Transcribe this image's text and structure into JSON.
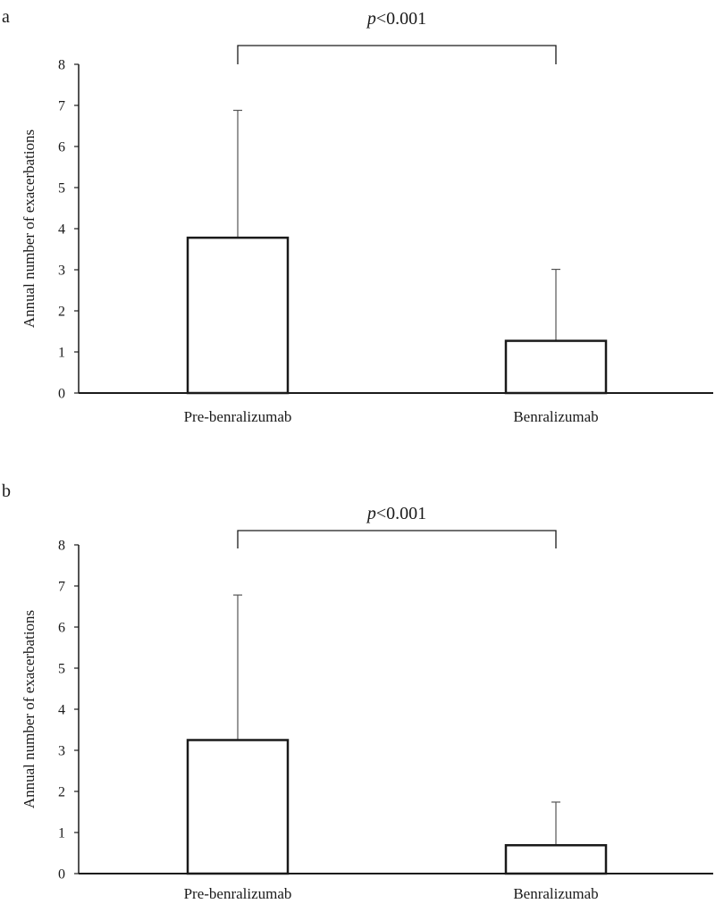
{
  "chart_data": [
    {
      "type": "bar",
      "panel_label": "a",
      "categories": [
        "Pre-benralizumab",
        "Benralizumab"
      ],
      "values": [
        3.78,
        1.27
      ],
      "error_upper": [
        6.88,
        3.01
      ],
      "ylabel": "Annual number of exacerbations",
      "ylim": [
        0,
        8
      ],
      "yticks": [
        0,
        1,
        2,
        3,
        4,
        5,
        6,
        7,
        8
      ],
      "annotation": {
        "italic": "p",
        "rest": "<0.001"
      }
    },
    {
      "type": "bar",
      "panel_label": "b",
      "categories": [
        "Pre-benralizumab",
        "Benralizumab"
      ],
      "values": [
        3.25,
        0.69
      ],
      "error_upper": [
        6.78,
        1.74
      ],
      "ylabel": "Annual number of exacerbations",
      "ylim": [
        0,
        8
      ],
      "yticks": [
        0,
        1,
        2,
        3,
        4,
        5,
        6,
        7,
        8
      ],
      "annotation": {
        "italic": "p",
        "rest": "<0.001"
      }
    }
  ],
  "colors": {
    "axis": "#1a1a1a",
    "bar_fill": "#ffffff",
    "bar_stroke": "#1a1a1a",
    "error": "#555555"
  }
}
